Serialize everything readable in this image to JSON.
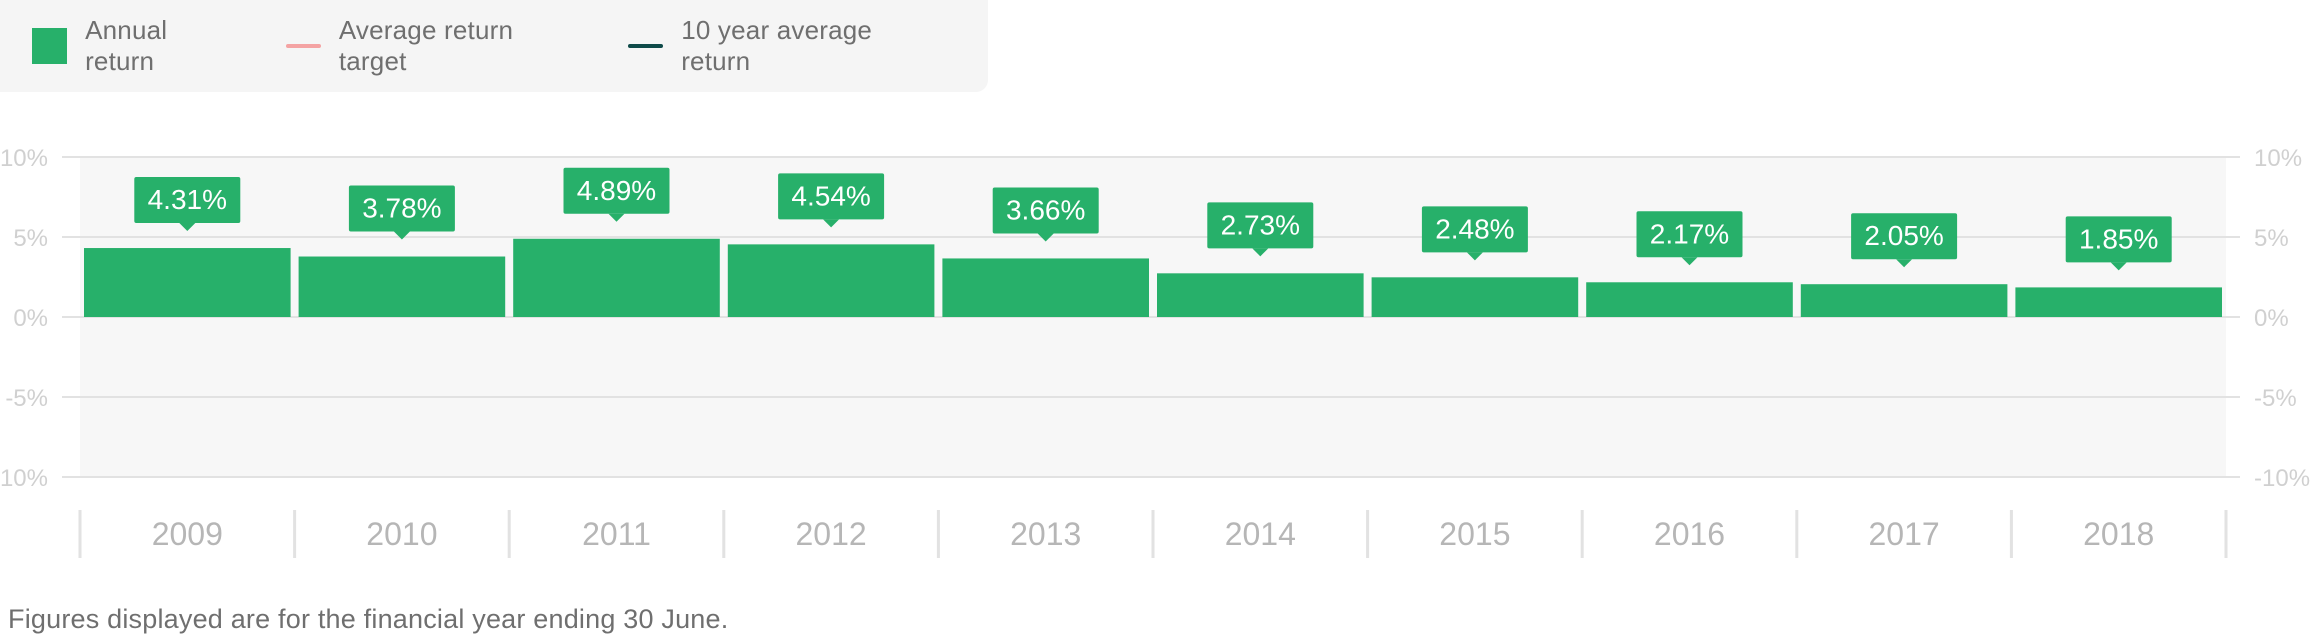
{
  "legend": {
    "annual_return": "Annual return",
    "average_target": "Average return target",
    "ten_year_average": "10 year average return"
  },
  "colors": {
    "bar": "#27b06a",
    "average_target": "#f4a3a3",
    "ten_year_average": "#0f4b49",
    "plot_background": "#f7f7f7",
    "grid": "#e2e2e2",
    "axis_text": "#d0d0d0",
    "category_text": "#b6b6b6"
  },
  "chart_data": {
    "type": "bar",
    "categories": [
      "2009",
      "2010",
      "2011",
      "2012",
      "2013",
      "2014",
      "2015",
      "2016",
      "2017",
      "2018"
    ],
    "series": [
      {
        "name": "Annual return",
        "values": [
          4.31,
          3.78,
          4.89,
          4.54,
          3.66,
          2.73,
          2.48,
          2.17,
          2.05,
          1.85
        ]
      }
    ],
    "data_labels": [
      "4.31%",
      "3.78%",
      "4.89%",
      "4.54%",
      "3.66%",
      "2.73%",
      "2.48%",
      "2.17%",
      "2.05%",
      "1.85%"
    ],
    "ylim": [
      -10,
      10
    ],
    "yticks": [
      10,
      5,
      0,
      -5,
      -10
    ],
    "ytick_labels_left": [
      "10%",
      "5%",
      "0%",
      "-5%",
      "-10%"
    ],
    "ytick_labels_right": [
      "10%",
      "5%",
      "0%",
      "-5%",
      "-10%"
    ],
    "grid": true,
    "legend_position": "top-left"
  },
  "footnote": "Figures displayed are for the financial year ending 30 June."
}
